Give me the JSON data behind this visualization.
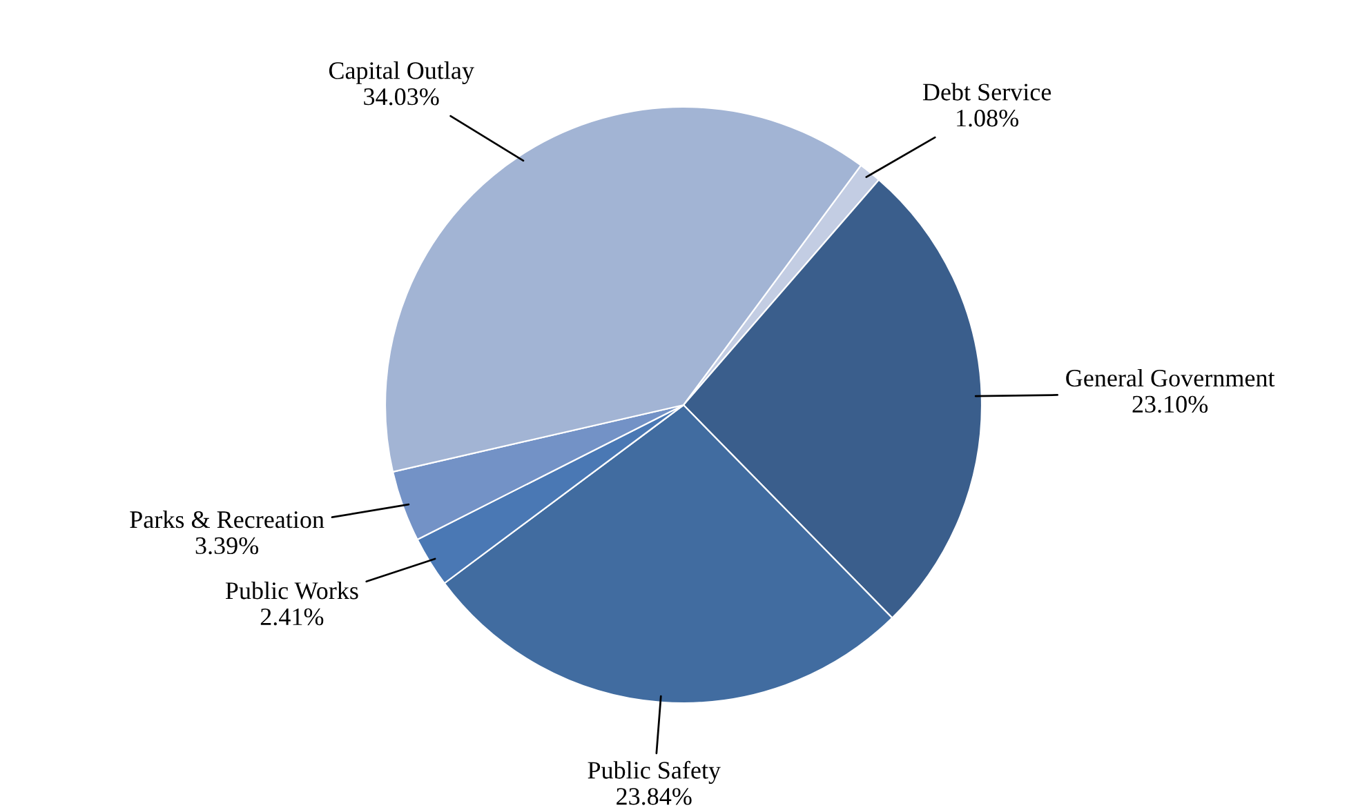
{
  "chart_data": {
    "type": "pie",
    "categories": [
      "Debt Service",
      "General Government",
      "Public Safety",
      "Public Works",
      "Parks & Recreation",
      "Capital Outlay"
    ],
    "values": [
      1.08,
      23.1,
      23.84,
      2.41,
      3.39,
      34.03
    ],
    "value_labels": [
      "1.08%",
      "23.10%",
      "23.84%",
      "2.41%",
      "3.39%",
      "34.03%"
    ],
    "colors": [
      "#c3cde3",
      "#3a5e8c",
      "#416ca0",
      "#4a78b4",
      "#7392c6",
      "#a2b4d4"
    ],
    "legend": false
  }
}
